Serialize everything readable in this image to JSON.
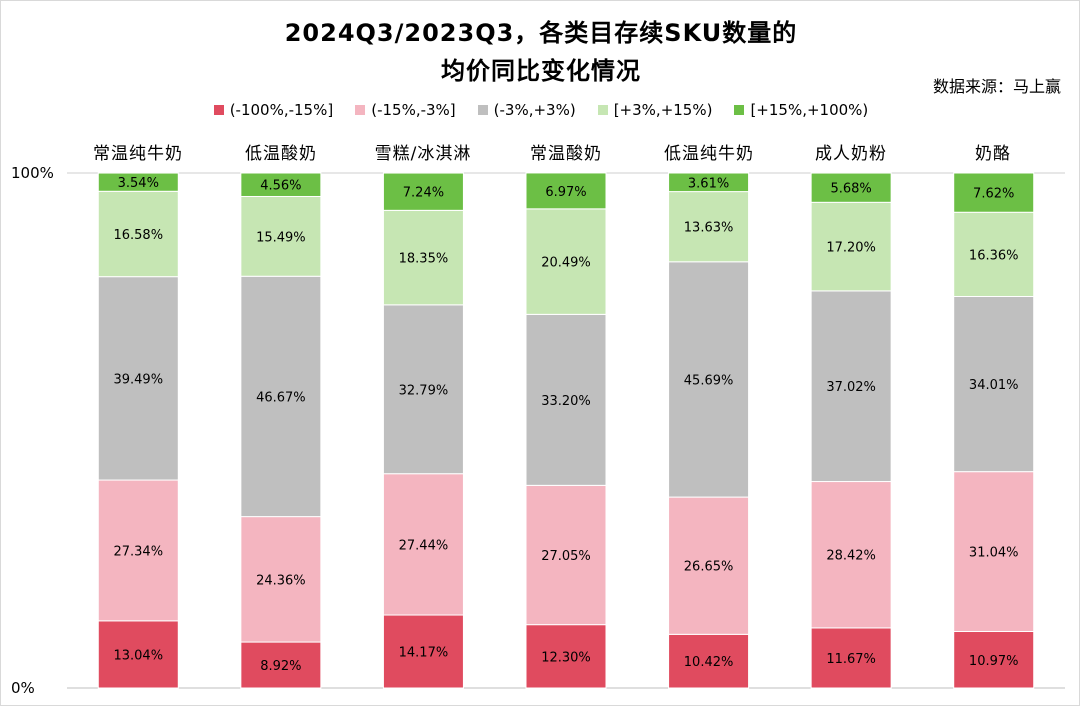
{
  "chart_data": {
    "type": "bar",
    "stacked": "percent",
    "title_line1": "2024Q3/2023Q3，各类目存续SKU数量的",
    "title_line2": "均价同比变化情况",
    "source_note": "数据来源：马上赢",
    "categories": [
      "常温纯牛奶",
      "低温酸奶",
      "雪糕/冰淇淋",
      "常温酸奶",
      "低温纯牛奶",
      "成人奶粉",
      "奶酪"
    ],
    "y_ticks": [
      "0%",
      "100%"
    ],
    "ylim": [
      0,
      100
    ],
    "legend_position": "top",
    "series": [
      {
        "name": "(-100%,-15%]",
        "color": "#e04b5f",
        "values": [
          13.04,
          8.92,
          14.17,
          12.3,
          10.42,
          11.67,
          10.97
        ],
        "labels": [
          "13.04%",
          "8.92%",
          "14.17%",
          "12.30%",
          "10.42%",
          "11.67%",
          "10.97%"
        ]
      },
      {
        "name": "(-15%,-3%]",
        "color": "#f4b5c0",
        "values": [
          27.34,
          24.36,
          27.44,
          27.05,
          26.65,
          28.42,
          31.04
        ],
        "labels": [
          "27.34%",
          "24.36%",
          "27.44%",
          "27.05%",
          "26.65%",
          "28.42%",
          "31.04%"
        ]
      },
      {
        "name": "(-3%,+3%)",
        "color": "#bfbfbf",
        "values": [
          39.49,
          46.67,
          32.79,
          33.2,
          45.69,
          37.02,
          34.01
        ],
        "labels": [
          "39.49%",
          "46.67%",
          "32.79%",
          "33.20%",
          "45.69%",
          "37.02%",
          "34.01%"
        ]
      },
      {
        "name": "[+3%,+15%)",
        "color": "#c6e6b3",
        "values": [
          16.58,
          15.49,
          18.35,
          20.49,
          13.63,
          17.2,
          16.36
        ],
        "labels": [
          "16.58%",
          "15.49%",
          "18.35%",
          "20.49%",
          "13.63%",
          "17.20%",
          "16.36%"
        ]
      },
      {
        "name": "[+15%,+100%)",
        "color": "#6cbf45",
        "values": [
          3.54,
          4.56,
          7.24,
          6.97,
          3.61,
          5.68,
          7.62
        ],
        "labels": [
          "3.54%",
          "4.56%",
          "7.24%",
          "6.97%",
          "3.61%",
          "5.68%",
          "7.62%"
        ]
      }
    ]
  }
}
